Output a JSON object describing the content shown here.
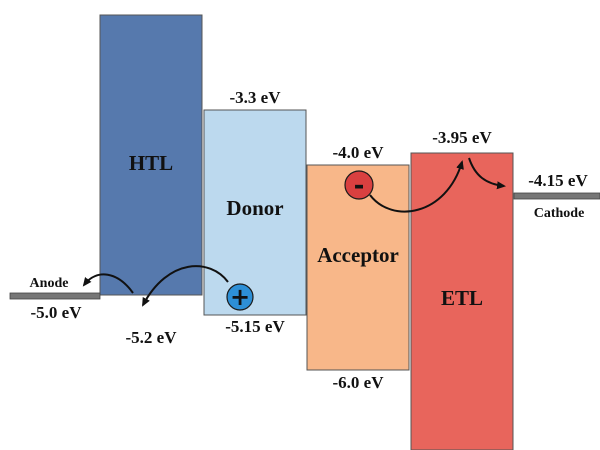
{
  "layers": {
    "htl": {
      "name": "HTL",
      "homo": "-5.2 eV",
      "color": "#5679ad"
    },
    "donor": {
      "name": "Donor",
      "lumo": "-3.3 eV",
      "homo": "-5.15 eV",
      "color": "#bcd9ee"
    },
    "acceptor": {
      "name": "Acceptor",
      "lumo": "-4.0 eV",
      "homo": "-6.0 eV",
      "color": "#f8b789"
    },
    "etl": {
      "name": "ETL",
      "lumo": "-3.95 eV",
      "color": "#e8655c"
    }
  },
  "electrodes": {
    "anode": {
      "name": "Anode",
      "level": "-5.0 eV",
      "color": "#777777"
    },
    "cathode": {
      "name": "Cathode",
      "level": "-4.15 eV",
      "color": "#777777"
    }
  },
  "charges": {
    "hole": {
      "symbol": "+",
      "color": "#2d8fd6"
    },
    "electron": {
      "symbol": "-",
      "color": "#d94040"
    }
  }
}
